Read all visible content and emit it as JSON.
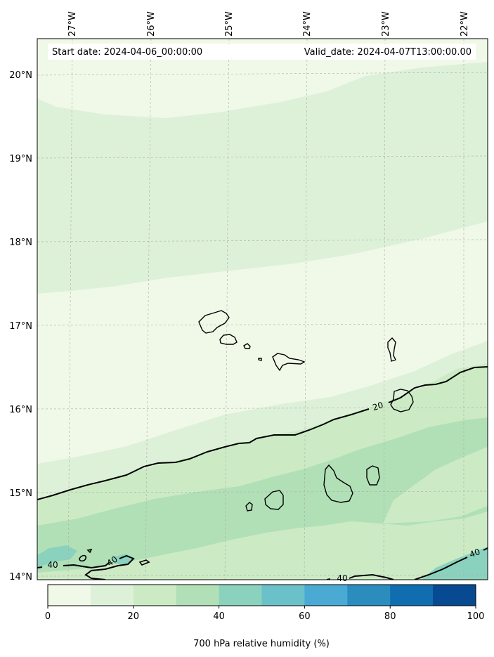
{
  "map": {
    "header": {
      "start_date": "Start date: 2024-04-06_00:00:00",
      "valid_date": "Valid_date: 2024-04-07T13:00:00.00"
    },
    "longitude_labels": [
      "27°W",
      "26°W",
      "25°W",
      "24°W",
      "23°W",
      "22°W"
    ],
    "latitude_labels": [
      "20°N",
      "19°N",
      "18°N",
      "17°N",
      "16°N",
      "15°N",
      "14°N"
    ],
    "contour_labels": [
      "20",
      "40",
      "40",
      "40",
      "40"
    ],
    "colorbar": {
      "label": "700 hPa relative humidity (%)",
      "ticks": [
        "0",
        "20",
        "40",
        "60",
        "80",
        "100"
      ],
      "colors": [
        "#f0f9e8",
        "#ddf1d9",
        "#ccebc5",
        "#b1e0b7",
        "#8bd2be",
        "#6bc1ca",
        "#4aaad3",
        "#2b8cbe",
        "#106eb0",
        "#084a91"
      ]
    }
  }
}
